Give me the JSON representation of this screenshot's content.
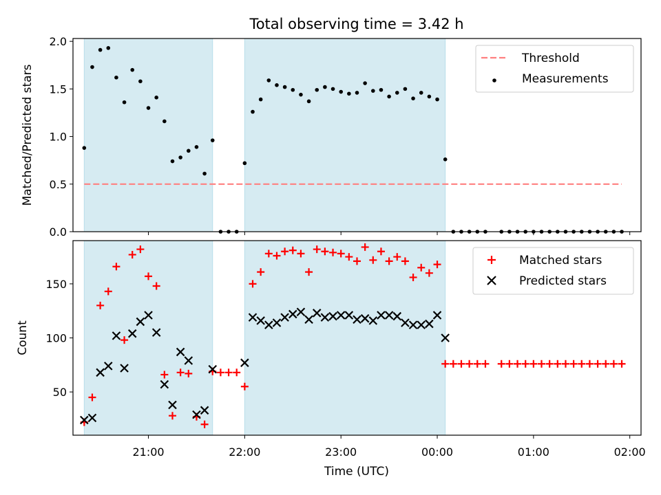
{
  "figure": {
    "title": "Total observing time = 3.42 h",
    "xlabel": "Time (UTC)"
  },
  "chart_data": [
    {
      "type": "scatter",
      "ylabel": "Matched/Predicted stars",
      "ylim": [
        0,
        2.03
      ],
      "yticks": [
        {
          "value": 0.0,
          "label": "0.0"
        },
        {
          "value": 0.5,
          "label": "0.5"
        },
        {
          "value": 1.0,
          "label": "1.0"
        },
        {
          "value": 1.5,
          "label": "1.5"
        },
        {
          "value": 2.0,
          "label": "2.0"
        }
      ],
      "legend": {
        "placement": "top-right",
        "entries": [
          {
            "label": "Threshold",
            "kind": "dashed-line",
            "color": "#ff7f7f"
          },
          {
            "label": "Measurements",
            "kind": "dot",
            "color": "#000000"
          }
        ]
      },
      "threshold": {
        "y": 0.5,
        "x_start": "20:20",
        "x_end": "01:55",
        "color": "#ff7f7f"
      },
      "series": [
        {
          "name": "Measurements",
          "marker": "dot",
          "color": "#000000",
          "x": [
            "20:20",
            "20:25",
            "20:30",
            "20:35",
            "20:40",
            "20:45",
            "20:50",
            "20:55",
            "21:00",
            "21:05",
            "21:10",
            "21:15",
            "21:20",
            "21:25",
            "21:30",
            "21:35",
            "21:40",
            "21:45",
            "21:50",
            "21:55",
            "22:00",
            "22:05",
            "22:10",
            "22:15",
            "22:20",
            "22:25",
            "22:30",
            "22:35",
            "22:40",
            "22:45",
            "22:50",
            "22:55",
            "23:00",
            "23:05",
            "23:10",
            "23:15",
            "23:20",
            "23:25",
            "23:30",
            "23:35",
            "23:40",
            "23:45",
            "23:50",
            "23:55",
            "00:00",
            "00:05",
            "00:10",
            "00:15",
            "00:20",
            "00:25",
            "00:30",
            "00:40",
            "00:45",
            "00:50",
            "00:55",
            "01:00",
            "01:05",
            "01:10",
            "01:15",
            "01:20",
            "01:25",
            "01:30",
            "01:35",
            "01:40",
            "01:45",
            "01:50",
            "01:55"
          ],
          "y": [
            0.88,
            1.73,
            1.91,
            1.93,
            1.62,
            1.36,
            1.7,
            1.58,
            1.3,
            1.41,
            1.16,
            0.74,
            0.78,
            0.85,
            0.89,
            0.61,
            0.96,
            0.0,
            0.0,
            0.0,
            0.72,
            1.26,
            1.39,
            1.59,
            1.54,
            1.52,
            1.49,
            1.44,
            1.37,
            1.49,
            1.52,
            1.5,
            1.47,
            1.45,
            1.46,
            1.56,
            1.48,
            1.49,
            1.42,
            1.46,
            1.5,
            1.4,
            1.46,
            1.42,
            1.39,
            0.76,
            0.0,
            0.0,
            0.0,
            0.0,
            0.0,
            0.0,
            0.0,
            0.0,
            0.0,
            0.0,
            0.0,
            0.0,
            0.0,
            0.0,
            0.0,
            0.0,
            0.0,
            0.0,
            0.0,
            0.0,
            0.0
          ]
        }
      ]
    },
    {
      "type": "scatter",
      "ylabel": "Count",
      "ylim": [
        10,
        190
      ],
      "yticks": [
        {
          "value": 50,
          "label": "50"
        },
        {
          "value": 100,
          "label": "100"
        },
        {
          "value": 150,
          "label": "150"
        }
      ],
      "legend": {
        "placement": "top-right",
        "entries": [
          {
            "label": "Matched stars",
            "kind": "plus",
            "color": "#ff0000"
          },
          {
            "label": "Predicted stars",
            "kind": "cross",
            "color": "#000000"
          }
        ]
      },
      "series": [
        {
          "name": "Matched stars",
          "marker": "plus",
          "color": "#ff0000",
          "x": [
            "20:20",
            "20:25",
            "20:30",
            "20:35",
            "20:40",
            "20:45",
            "20:50",
            "20:55",
            "21:00",
            "21:05",
            "21:10",
            "21:15",
            "21:20",
            "21:25",
            "21:30",
            "21:35",
            "21:40",
            "21:45",
            "21:50",
            "21:55",
            "22:00",
            "22:05",
            "22:10",
            "22:15",
            "22:20",
            "22:25",
            "22:30",
            "22:35",
            "22:40",
            "22:45",
            "22:50",
            "22:55",
            "23:00",
            "23:05",
            "23:10",
            "23:15",
            "23:20",
            "23:25",
            "23:30",
            "23:35",
            "23:40",
            "23:45",
            "23:50",
            "23:55",
            "00:00",
            "00:05",
            "00:10",
            "00:15",
            "00:20",
            "00:25",
            "00:30",
            "00:40",
            "00:45",
            "00:50",
            "00:55",
            "01:00",
            "01:05",
            "01:10",
            "01:15",
            "01:20",
            "01:25",
            "01:30",
            "01:35",
            "01:40",
            "01:45",
            "01:50",
            "01:55"
          ],
          "y": [
            22,
            45,
            130,
            143,
            166,
            98,
            177,
            182,
            157,
            148,
            66,
            28,
            68,
            67,
            27,
            20,
            69,
            68,
            68,
            68,
            55,
            150,
            161,
            178,
            176,
            180,
            181,
            178,
            161,
            182,
            180,
            179,
            178,
            175,
            171,
            184,
            172,
            180,
            171,
            175,
            171,
            156,
            165,
            160,
            168,
            76,
            76,
            76,
            76,
            76,
            76,
            76,
            76,
            76,
            76,
            76,
            76,
            76,
            76,
            76,
            76,
            76,
            76,
            76,
            76,
            76,
            76
          ]
        },
        {
          "name": "Predicted stars",
          "marker": "cross",
          "color": "#000000",
          "x": [
            "20:20",
            "20:25",
            "20:30",
            "20:35",
            "20:40",
            "20:45",
            "20:50",
            "20:55",
            "21:00",
            "21:05",
            "21:10",
            "21:15",
            "21:20",
            "21:25",
            "21:30",
            "21:35",
            "21:40",
            "22:00",
            "22:05",
            "22:10",
            "22:15",
            "22:20",
            "22:25",
            "22:30",
            "22:35",
            "22:40",
            "22:45",
            "22:50",
            "22:55",
            "23:00",
            "23:05",
            "23:10",
            "23:15",
            "23:20",
            "23:25",
            "23:30",
            "23:35",
            "23:40",
            "23:45",
            "23:50",
            "23:55",
            "00:00",
            "00:05"
          ],
          "y": [
            24,
            26,
            68,
            74,
            102,
            72,
            104,
            115,
            121,
            105,
            57,
            38,
            87,
            79,
            29,
            33,
            71,
            77,
            119,
            116,
            112,
            114,
            119,
            122,
            124,
            117,
            123,
            119,
            120,
            121,
            121,
            117,
            118,
            116,
            121,
            121,
            120,
            114,
            112,
            112,
            113,
            121,
            100
          ]
        }
      ]
    }
  ],
  "x_axis": {
    "start": "20:13",
    "end": "02:07",
    "ticks": [
      "21:00",
      "22:00",
      "23:00",
      "00:00",
      "01:00",
      "02:00"
    ]
  },
  "observing_windows": [
    {
      "start": "20:20",
      "end": "21:40",
      "color": "#add8e6"
    },
    {
      "start": "22:00",
      "end": "00:05",
      "color": "#add8e6"
    }
  ]
}
